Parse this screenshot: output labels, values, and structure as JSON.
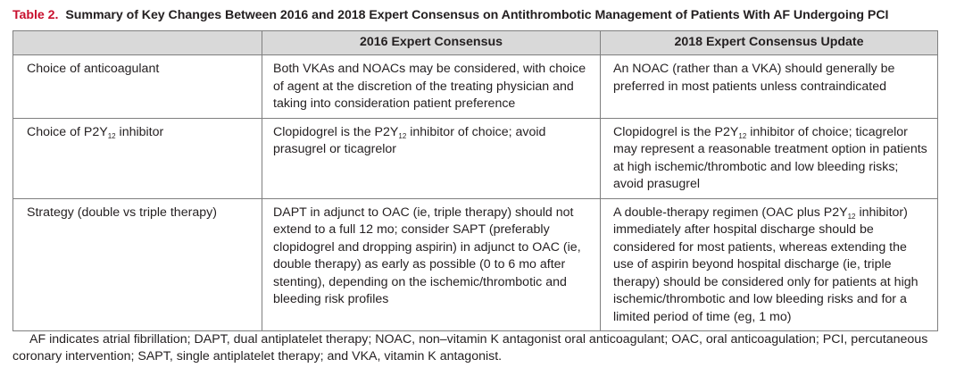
{
  "caption": {
    "label": "Table 2.",
    "title": "Summary of Key Changes Between 2016 and 2018 Expert Consensus on Antithrombotic Management of Patients With AF Undergoing PCI"
  },
  "table": {
    "headers": [
      "",
      "2016 Expert Consensus",
      "2018 Expert Consensus Update"
    ],
    "rows": [
      {
        "topic": [
          "Choice of anticoagulant"
        ],
        "c2016": [
          "Both VKAs and NOACs may be considered, with choice of agent at the discretion of the treating physician and taking into consideration patient preference"
        ],
        "c2018": [
          "An NOAC (rather than a VKA) should generally be preferred in most patients unless contraindicated"
        ]
      },
      {
        "topic": [
          "Choice of P2Y",
          "12",
          " inhibitor"
        ],
        "c2016": [
          "Clopidogrel is the P2Y",
          "12",
          " inhibitor of choice; avoid prasugrel or ticagrelor"
        ],
        "c2018": [
          "Clopidogrel is the P2Y",
          "12",
          " inhibitor of choice; ticagrelor may represent a reasonable treatment option in patients at high ischemic/thrombotic and low bleeding risks; avoid prasugrel"
        ]
      },
      {
        "topic": [
          "Strategy (double vs triple therapy)"
        ],
        "c2016": [
          "DAPT in adjunct to OAC (ie, triple therapy) should not extend to a full 12 mo; consider SAPT (preferably clopidogrel and dropping aspirin) in adjunct to OAC (ie, double therapy) as early as possible (0 to 6 mo after stenting), depending on the ischemic/thrombotic and bleeding risk profiles"
        ],
        "c2018": [
          "A double-therapy regimen (OAC plus P2Y",
          "12",
          " inhibitor) immediately after hospital discharge should be considered for most patients, whereas extending the use of aspirin beyond hospital discharge (ie, triple therapy) should be considered only for patients at high ischemic/thrombotic and low bleeding risks and for a limited period of time (eg, 1 mo)"
        ]
      }
    ]
  },
  "footnote": "AF indicates atrial fibrillation; DAPT, dual antiplatelet therapy; NOAC, non–vitamin K antagonist oral anticoagulant; OAC, oral anticoagulation; PCI, percutaneous coronary intervention; SAPT, single antiplatelet therapy; and VKA, vitamin K antagonist."
}
